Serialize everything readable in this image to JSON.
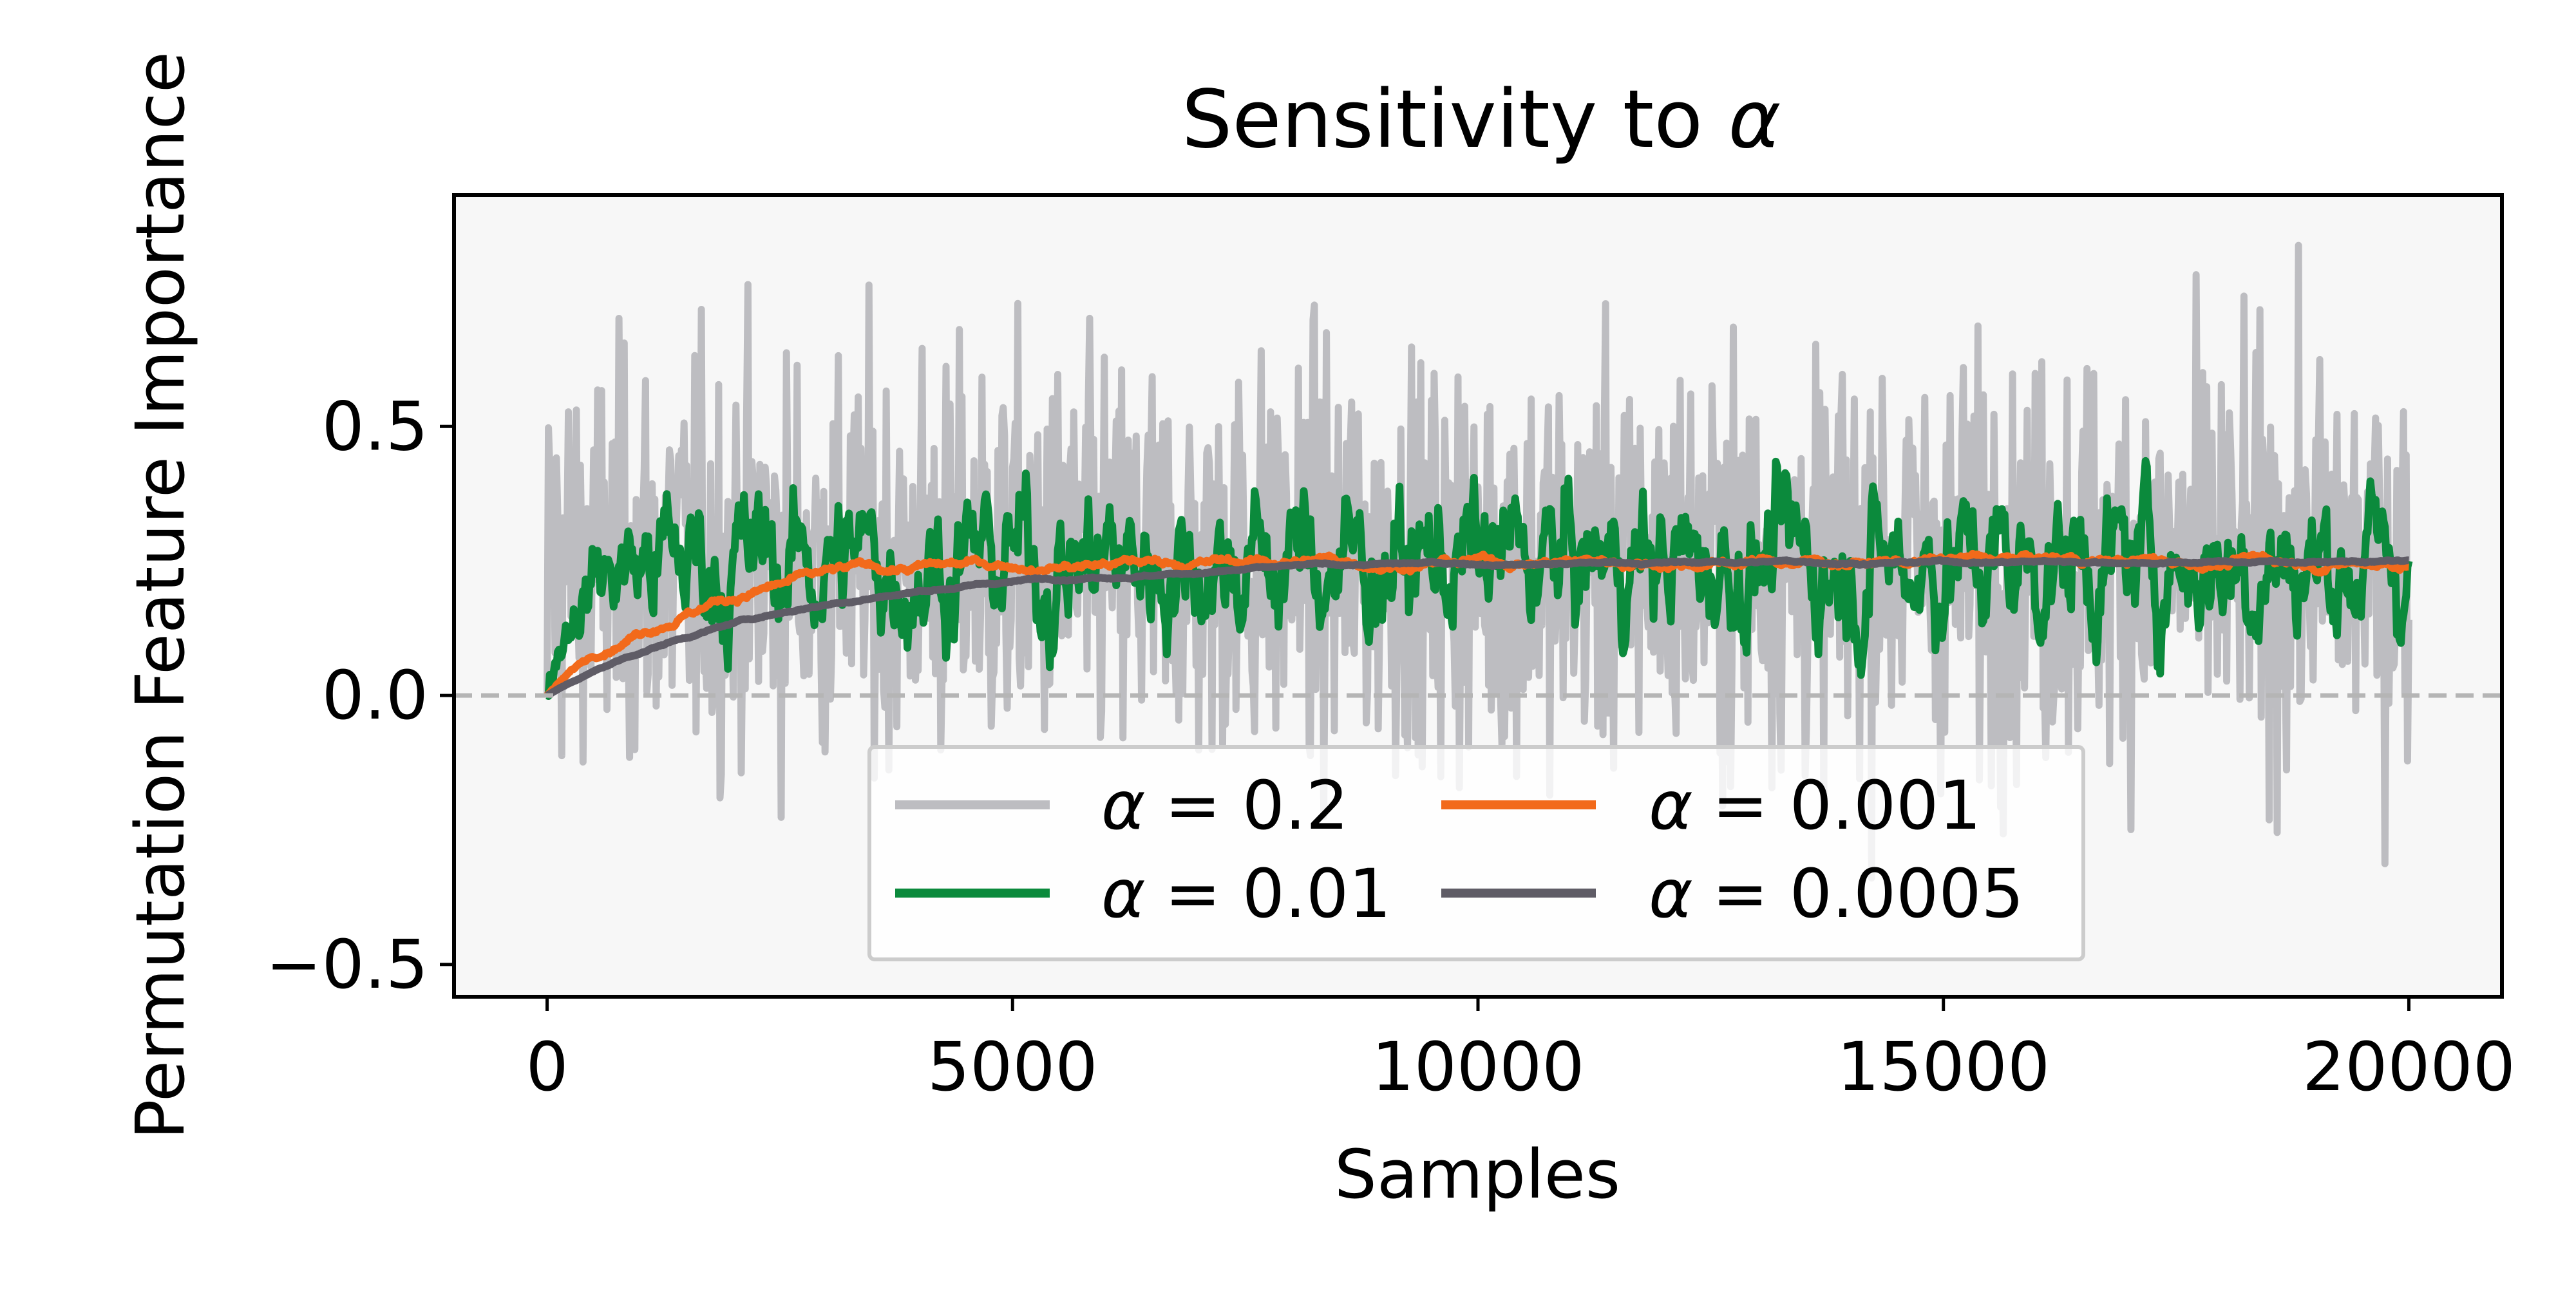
{
  "chart_data": {
    "type": "line",
    "title_prefix": "Sensitivity to ",
    "title_symbol": "α",
    "xlabel": "Samples",
    "ylabel": "Permutation Feature Importance",
    "xlim": [
      -1000,
      21000
    ],
    "ylim": [
      -0.56,
      0.93
    ],
    "x_ticks": [
      {
        "value": 0,
        "label": "0"
      },
      {
        "value": 5000,
        "label": "5000"
      },
      {
        "value": 10000,
        "label": "10000"
      },
      {
        "value": 15000,
        "label": "15000"
      },
      {
        "value": 20000,
        "label": "20000"
      }
    ],
    "y_ticks": [
      {
        "value": 0.5,
        "label": "0.5"
      },
      {
        "value": 0.0,
        "label": "0.0"
      },
      {
        "value": -0.5,
        "label": "−0.5"
      }
    ],
    "reference_line": {
      "y": 0.0,
      "style": "dashed",
      "color": "#b5b5b5"
    },
    "plot_background": "#f7f7f7",
    "grid": false,
    "legend": {
      "placement": "lower-center",
      "columns": 2
    },
    "series": [
      {
        "name_symbol": "α",
        "name_value": "= 0.2",
        "color": "#bdbdc1",
        "x_range": [
          0,
          20000
        ],
        "mean": 0.25,
        "spread": 0.3,
        "smoothing": "none",
        "note_range": [
          -0.5,
          0.87
        ]
      },
      {
        "name_symbol": "α",
        "name_value": "= 0.01",
        "color": "#0b8a3c",
        "x_range": [
          0,
          20000
        ],
        "plateau": 0.25,
        "spread": 0.04
      },
      {
        "name_symbol": "α",
        "name_value": "= 0.001",
        "color": "#f26a1b",
        "x_range": [
          0,
          20000
        ],
        "plateau": 0.25,
        "spread": 0.012
      },
      {
        "name_symbol": "α",
        "name_value": "= 0.0005",
        "color": "#5f5c66",
        "x_range": [
          0,
          20000
        ],
        "plateau": 0.25,
        "spread": 0.006
      }
    ]
  }
}
